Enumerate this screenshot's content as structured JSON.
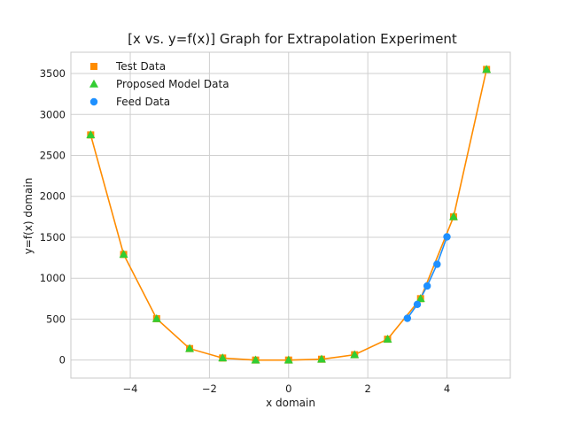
{
  "chart_data": {
    "type": "scatter",
    "title": "[x vs. y=f(x)] Graph for Extrapolation Experiment",
    "xlabel": "x domain",
    "ylabel": "y=f(x) domain",
    "xlim": [
      -5.5,
      5.6
    ],
    "ylim": [
      -220,
      3760
    ],
    "xticks": [
      -4,
      -2,
      0,
      2,
      4
    ],
    "yticks": [
      0,
      500,
      1000,
      1500,
      2000,
      2500,
      3000,
      3500
    ],
    "grid": true,
    "legend_position": "top-left",
    "series": [
      {
        "name": "Test Data",
        "marker": "square",
        "color": "#ff8c00",
        "line": true,
        "x": [
          -5.0,
          -4.1667,
          -3.3333,
          -2.5,
          -1.6667,
          -0.8333,
          0.0,
          0.8333,
          1.6667,
          2.5,
          3.3333,
          4.1667,
          5.0
        ],
        "y": [
          2750,
          1290,
          505,
          140,
          25,
          0,
          0,
          10,
          65,
          255,
          750,
          1750,
          3550
        ]
      },
      {
        "name": "Proposed Model Data",
        "marker": "triangle",
        "color": "#32cd32",
        "line": false,
        "x": [
          -5.0,
          -4.1667,
          -3.3333,
          -2.5,
          -1.6667,
          -0.8333,
          0.0,
          0.8333,
          1.6667,
          2.5,
          3.3333,
          4.1667,
          5.0
        ],
        "y": [
          2750,
          1290,
          505,
          140,
          25,
          0,
          0,
          10,
          65,
          255,
          750,
          1750,
          3550
        ]
      },
      {
        "name": "Feed Data",
        "marker": "circle",
        "color": "#1e90ff",
        "line": true,
        "x": [
          3.0,
          3.25,
          3.5,
          3.75,
          4.0
        ],
        "y": [
          510,
          680,
          905,
          1170,
          1505
        ]
      }
    ]
  }
}
